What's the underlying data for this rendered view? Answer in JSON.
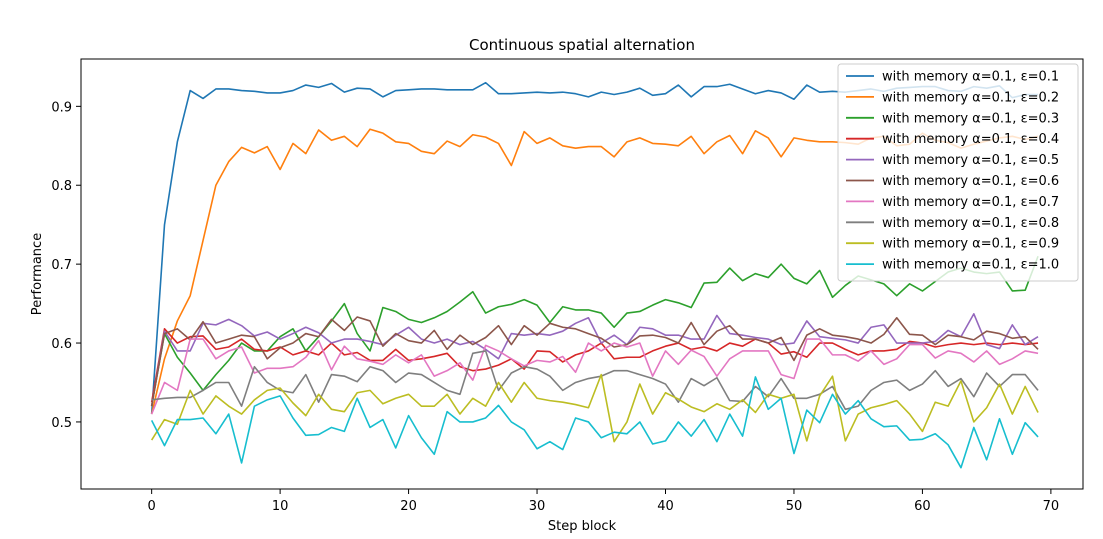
{
  "chart_data": {
    "type": "line",
    "title": "Continuous spatial alternation",
    "xlabel": "Step block",
    "ylabel": "Performance",
    "xlim": [
      -5.5,
      72.5
    ],
    "ylim": [
      0.415,
      0.96
    ],
    "xticks": [
      0,
      10,
      20,
      30,
      40,
      50,
      60,
      70
    ],
    "yticks": [
      0.5,
      0.6,
      0.7,
      0.8,
      0.9
    ],
    "ytick_labels": [
      "0.5",
      "0.6",
      "0.7",
      "0.8",
      "0.9"
    ],
    "grid": false,
    "legend_position": "top-right",
    "x": [
      0,
      1,
      2,
      3,
      4,
      5,
      6,
      7,
      8,
      9,
      10,
      11,
      12,
      13,
      14,
      15,
      16,
      17,
      18,
      19,
      20,
      21,
      22,
      23,
      24,
      25,
      26,
      27,
      28,
      29,
      30,
      31,
      32,
      33,
      34,
      35,
      36,
      37,
      38,
      39,
      40,
      41,
      42,
      43,
      44,
      45,
      46,
      47,
      48,
      49,
      50,
      51,
      52,
      53,
      54,
      55,
      56,
      57,
      58,
      59,
      60,
      61,
      62,
      63,
      64,
      65,
      66,
      67,
      68,
      69
    ],
    "series": [
      {
        "name": "with memory α=0.1, ε=0.1",
        "color": "#1f77b4",
        "values": [
          0.51,
          0.75,
          0.855,
          0.92,
          0.91,
          0.922,
          0.922,
          0.92,
          0.919,
          0.917,
          0.917,
          0.92,
          0.927,
          0.924,
          0.929,
          0.918,
          0.923,
          0.922,
          0.912,
          0.92,
          0.921,
          0.922,
          0.922,
          0.921,
          0.921,
          0.921,
          0.93,
          0.916,
          0.916,
          0.917,
          0.918,
          0.917,
          0.918,
          0.916,
          0.912,
          0.918,
          0.915,
          0.918,
          0.923,
          0.914,
          0.916,
          0.927,
          0.912,
          0.925,
          0.925,
          0.928,
          0.922,
          0.916,
          0.92,
          0.917,
          0.909,
          0.927,
          0.918,
          0.919,
          0.918,
          0.92,
          0.922,
          0.919,
          0.923,
          0.924,
          0.925,
          0.925,
          0.92,
          0.919,
          0.925,
          0.923,
          0.926,
          0.911,
          0.915,
          0.915
        ]
      },
      {
        "name": "with memory α=0.1, ε=0.2",
        "color": "#ff7f0e",
        "values": [
          0.51,
          0.58,
          0.628,
          0.66,
          0.73,
          0.8,
          0.83,
          0.848,
          0.841,
          0.849,
          0.82,
          0.853,
          0.84,
          0.87,
          0.857,
          0.862,
          0.849,
          0.871,
          0.866,
          0.855,
          0.853,
          0.843,
          0.84,
          0.856,
          0.849,
          0.864,
          0.861,
          0.853,
          0.825,
          0.868,
          0.853,
          0.86,
          0.85,
          0.847,
          0.849,
          0.849,
          0.836,
          0.855,
          0.86,
          0.853,
          0.852,
          0.85,
          0.862,
          0.84,
          0.855,
          0.863,
          0.84,
          0.869,
          0.86,
          0.836,
          0.86,
          0.857,
          0.855,
          0.855,
          0.854,
          0.852,
          0.86,
          0.862,
          0.85,
          0.852,
          0.866,
          0.857,
          0.854,
          0.847,
          0.852,
          0.856,
          0.86,
          0.862,
          0.858,
          0.862
        ]
      },
      {
        "name": "with memory α=0.1, ε=0.3",
        "color": "#2ca02c",
        "values": [
          0.52,
          0.612,
          0.582,
          0.562,
          0.54,
          0.56,
          0.578,
          0.6,
          0.59,
          0.59,
          0.608,
          0.618,
          0.59,
          0.608,
          0.628,
          0.65,
          0.612,
          0.59,
          0.645,
          0.64,
          0.63,
          0.626,
          0.632,
          0.64,
          0.652,
          0.665,
          0.638,
          0.646,
          0.649,
          0.655,
          0.648,
          0.626,
          0.646,
          0.642,
          0.642,
          0.638,
          0.62,
          0.638,
          0.64,
          0.648,
          0.655,
          0.651,
          0.645,
          0.676,
          0.677,
          0.695,
          0.679,
          0.688,
          0.683,
          0.7,
          0.682,
          0.675,
          0.692,
          0.658,
          0.673,
          0.685,
          0.68,
          0.675,
          0.66,
          0.675,
          0.666,
          0.678,
          0.69,
          0.695,
          0.69,
          0.688,
          0.69,
          0.666,
          0.667,
          0.71
        ]
      },
      {
        "name": "with memory α=0.1, ε=0.4",
        "color": "#d62728",
        "values": [
          0.525,
          0.618,
          0.6,
          0.608,
          0.609,
          0.592,
          0.595,
          0.605,
          0.592,
          0.59,
          0.595,
          0.585,
          0.59,
          0.585,
          0.6,
          0.585,
          0.588,
          0.578,
          0.578,
          0.592,
          0.578,
          0.58,
          0.583,
          0.587,
          0.57,
          0.565,
          0.567,
          0.572,
          0.58,
          0.567,
          0.59,
          0.589,
          0.576,
          0.585,
          0.59,
          0.6,
          0.58,
          0.582,
          0.582,
          0.59,
          0.596,
          0.6,
          0.592,
          0.595,
          0.59,
          0.6,
          0.596,
          0.605,
          0.6,
          0.586,
          0.589,
          0.582,
          0.6,
          0.6,
          0.592,
          0.585,
          0.59,
          0.59,
          0.592,
          0.602,
          0.6,
          0.595,
          0.598,
          0.6,
          0.598,
          0.6,
          0.598,
          0.6,
          0.598,
          0.6
        ]
      },
      {
        "name": "with memory α=0.1, ε=0.5",
        "color": "#9467bd",
        "values": [
          0.52,
          0.615,
          0.59,
          0.59,
          0.625,
          0.623,
          0.63,
          0.622,
          0.609,
          0.614,
          0.605,
          0.612,
          0.62,
          0.613,
          0.6,
          0.605,
          0.605,
          0.602,
          0.598,
          0.61,
          0.62,
          0.605,
          0.6,
          0.605,
          0.598,
          0.602,
          0.592,
          0.58,
          0.612,
          0.61,
          0.612,
          0.61,
          0.615,
          0.625,
          0.632,
          0.6,
          0.61,
          0.598,
          0.62,
          0.618,
          0.61,
          0.61,
          0.605,
          0.605,
          0.635,
          0.612,
          0.61,
          0.607,
          0.605,
          0.598,
          0.6,
          0.628,
          0.608,
          0.606,
          0.604,
          0.6,
          0.62,
          0.623,
          0.6,
          0.6,
          0.6,
          0.602,
          0.616,
          0.608,
          0.637,
          0.598,
          0.593,
          0.623,
          0.598,
          0.608
        ]
      },
      {
        "name": "with memory α=0.1, ε=0.6",
        "color": "#8c564b",
        "values": [
          0.52,
          0.612,
          0.618,
          0.604,
          0.627,
          0.6,
          0.605,
          0.61,
          0.608,
          0.58,
          0.594,
          0.6,
          0.612,
          0.608,
          0.63,
          0.616,
          0.633,
          0.628,
          0.596,
          0.612,
          0.603,
          0.6,
          0.616,
          0.592,
          0.61,
          0.598,
          0.607,
          0.622,
          0.598,
          0.622,
          0.61,
          0.625,
          0.62,
          0.618,
          0.612,
          0.606,
          0.595,
          0.598,
          0.609,
          0.61,
          0.607,
          0.6,
          0.626,
          0.598,
          0.615,
          0.622,
          0.605,
          0.605,
          0.6,
          0.607,
          0.578,
          0.61,
          0.618,
          0.61,
          0.608,
          0.605,
          0.6,
          0.611,
          0.632,
          0.611,
          0.61,
          0.598,
          0.61,
          0.608,
          0.604,
          0.615,
          0.612,
          0.606,
          0.608,
          0.592
        ]
      },
      {
        "name": "with memory α=0.1, ε=0.7",
        "color": "#e377c2",
        "values": [
          0.51,
          0.55,
          0.54,
          0.605,
          0.605,
          0.58,
          0.59,
          0.595,
          0.562,
          0.568,
          0.568,
          0.57,
          0.582,
          0.603,
          0.566,
          0.596,
          0.58,
          0.577,
          0.573,
          0.585,
          0.575,
          0.585,
          0.558,
          0.565,
          0.575,
          0.553,
          0.597,
          0.59,
          0.58,
          0.571,
          0.578,
          0.576,
          0.583,
          0.563,
          0.6,
          0.59,
          0.6,
          0.595,
          0.6,
          0.558,
          0.59,
          0.573,
          0.591,
          0.583,
          0.558,
          0.58,
          0.59,
          0.59,
          0.59,
          0.56,
          0.555,
          0.605,
          0.605,
          0.585,
          0.585,
          0.577,
          0.59,
          0.573,
          0.58,
          0.598,
          0.598,
          0.581,
          0.59,
          0.587,
          0.576,
          0.59,
          0.573,
          0.58,
          0.59,
          0.587
        ]
      },
      {
        "name": "with memory α=0.1, ε=0.8",
        "color": "#7f7f7f",
        "values": [
          0.528,
          0.53,
          0.531,
          0.531,
          0.54,
          0.55,
          0.55,
          0.52,
          0.57,
          0.55,
          0.54,
          0.537,
          0.56,
          0.525,
          0.56,
          0.558,
          0.551,
          0.57,
          0.565,
          0.55,
          0.562,
          0.56,
          0.55,
          0.54,
          0.535,
          0.587,
          0.59,
          0.54,
          0.562,
          0.57,
          0.567,
          0.558,
          0.54,
          0.55,
          0.555,
          0.558,
          0.565,
          0.565,
          0.56,
          0.555,
          0.548,
          0.525,
          0.555,
          0.546,
          0.556,
          0.527,
          0.526,
          0.545,
          0.532,
          0.555,
          0.53,
          0.53,
          0.535,
          0.545,
          0.516,
          0.52,
          0.54,
          0.55,
          0.553,
          0.54,
          0.548,
          0.565,
          0.545,
          0.555,
          0.532,
          0.562,
          0.545,
          0.56,
          0.56,
          0.54
        ]
      },
      {
        "name": "with memory α=0.1, ε=0.9",
        "color": "#bcbd22",
        "values": [
          0.477,
          0.503,
          0.497,
          0.54,
          0.51,
          0.533,
          0.52,
          0.51,
          0.528,
          0.54,
          0.543,
          0.524,
          0.508,
          0.535,
          0.516,
          0.513,
          0.537,
          0.54,
          0.523,
          0.53,
          0.535,
          0.52,
          0.52,
          0.535,
          0.51,
          0.53,
          0.52,
          0.55,
          0.525,
          0.55,
          0.53,
          0.527,
          0.525,
          0.522,
          0.518,
          0.56,
          0.475,
          0.5,
          0.548,
          0.51,
          0.537,
          0.529,
          0.519,
          0.513,
          0.523,
          0.516,
          0.528,
          0.512,
          0.535,
          0.53,
          0.535,
          0.476,
          0.533,
          0.558,
          0.476,
          0.51,
          0.518,
          0.522,
          0.527,
          0.51,
          0.488,
          0.525,
          0.52,
          0.552,
          0.5,
          0.518,
          0.548,
          0.51,
          0.545,
          0.512
        ]
      },
      {
        "name": "with memory α=0.1, ε=1.0",
        "color": "#17becf",
        "values": [
          0.502,
          0.47,
          0.503,
          0.503,
          0.505,
          0.485,
          0.51,
          0.448,
          0.52,
          0.528,
          0.533,
          0.505,
          0.483,
          0.484,
          0.493,
          0.488,
          0.53,
          0.493,
          0.503,
          0.467,
          0.508,
          0.48,
          0.459,
          0.513,
          0.5,
          0.5,
          0.505,
          0.521,
          0.5,
          0.49,
          0.466,
          0.475,
          0.465,
          0.505,
          0.5,
          0.48,
          0.487,
          0.485,
          0.5,
          0.472,
          0.476,
          0.5,
          0.482,
          0.503,
          0.475,
          0.51,
          0.482,
          0.557,
          0.516,
          0.53,
          0.46,
          0.515,
          0.499,
          0.535,
          0.51,
          0.527,
          0.504,
          0.494,
          0.495,
          0.477,
          0.478,
          0.485,
          0.471,
          0.442,
          0.493,
          0.452,
          0.504,
          0.459,
          0.499,
          0.481
        ]
      }
    ]
  }
}
